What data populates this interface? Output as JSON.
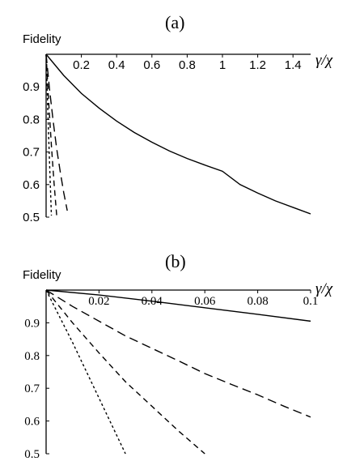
{
  "chart_data": [
    {
      "panel_label": "(a)",
      "type": "line",
      "ylabel": "Fidelity",
      "xlabel": "γ/χ",
      "xlim": [
        0,
        1.5
      ],
      "ylim": [
        0.5,
        1.0
      ],
      "xticks": [
        "0.2",
        "0.4",
        "0.6",
        "0.8",
        "1",
        "1.2",
        "1.4"
      ],
      "yticks": [
        "0.9",
        "0.8",
        "0.7",
        "0.6",
        "0.5"
      ],
      "grid": false,
      "series": [
        {
          "style": "solid",
          "x": [
            0,
            0.1,
            0.2,
            0.3,
            0.4,
            0.5,
            0.6,
            0.7,
            0.8,
            0.9,
            1.0,
            1.1,
            1.2,
            1.3,
            1.4,
            1.5
          ],
          "y": [
            1.0,
            0.935,
            0.88,
            0.835,
            0.795,
            0.76,
            0.73,
            0.703,
            0.68,
            0.66,
            0.641,
            0.6,
            0.574,
            0.55,
            0.53,
            0.51
          ]
        },
        {
          "style": "long-dash",
          "x": [
            0,
            0.02,
            0.04,
            0.06,
            0.08,
            0.1,
            0.12
          ],
          "y": [
            1.0,
            0.89,
            0.795,
            0.71,
            0.64,
            0.575,
            0.52
          ]
        },
        {
          "style": "medium-dash",
          "x": [
            0,
            0.015,
            0.03,
            0.045,
            0.06
          ],
          "y": [
            1.0,
            0.85,
            0.72,
            0.605,
            0.505
          ]
        },
        {
          "style": "short-dash",
          "x": [
            0,
            0.01,
            0.02,
            0.03
          ],
          "y": [
            1.0,
            0.82,
            0.66,
            0.505
          ]
        }
      ]
    },
    {
      "panel_label": "(b)",
      "type": "line",
      "ylabel": "Fidelity",
      "xlabel": "γ/χ",
      "xlim": [
        0,
        0.1
      ],
      "ylim": [
        0.5,
        1.0
      ],
      "xticks": [
        "0.02",
        "0.04",
        "0.06",
        "0.08",
        "0.1"
      ],
      "yticks": [
        "0.9",
        "0.8",
        "0.7",
        "0.6",
        "0.5"
      ],
      "grid": false,
      "series": [
        {
          "style": "solid",
          "x": [
            0,
            0.02,
            0.04,
            0.06,
            0.08,
            0.1
          ],
          "y": [
            1.0,
            0.985,
            0.966,
            0.946,
            0.926,
            0.905
          ]
        },
        {
          "style": "long-dash",
          "x": [
            0,
            0.01,
            0.02,
            0.03,
            0.04,
            0.05,
            0.06,
            0.07,
            0.08,
            0.09,
            0.1
          ],
          "y": [
            1.0,
            0.95,
            0.905,
            0.86,
            0.822,
            0.784,
            0.745,
            0.712,
            0.68,
            0.645,
            0.612
          ]
        },
        {
          "style": "medium-dash",
          "x": [
            0,
            0.01,
            0.02,
            0.03,
            0.04,
            0.05,
            0.06
          ],
          "y": [
            1.0,
            0.9,
            0.808,
            0.72,
            0.645,
            0.57,
            0.5
          ]
        },
        {
          "style": "short-dash",
          "x": [
            0,
            0.005,
            0.01,
            0.015,
            0.02,
            0.025,
            0.03
          ],
          "y": [
            1.0,
            0.92,
            0.84,
            0.755,
            0.67,
            0.585,
            0.5
          ]
        }
      ]
    }
  ]
}
